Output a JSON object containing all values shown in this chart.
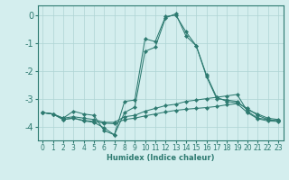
{
  "background_color": "#d4eeee",
  "grid_color": "#aed4d4",
  "line_color": "#2d7a70",
  "xlabel": "Humidex (Indice chaleur)",
  "ylim": [
    -4.5,
    0.35
  ],
  "xlim": [
    -0.5,
    23.5
  ],
  "yticks": [
    0,
    -1,
    -2,
    -3,
    -4
  ],
  "xticks": [
    0,
    1,
    2,
    3,
    4,
    5,
    6,
    7,
    8,
    9,
    10,
    11,
    12,
    13,
    14,
    15,
    16,
    17,
    18,
    19,
    20,
    21,
    22,
    23
  ],
  "curves": [
    {
      "x": [
        0,
        1,
        2,
        3,
        4,
        5,
        6,
        7,
        8,
        9,
        10,
        11,
        12,
        13,
        14,
        15,
        16,
        17,
        18,
        19,
        20,
        21,
        22,
        23
      ],
      "y": [
        -3.5,
        -3.55,
        -3.7,
        -3.45,
        -3.55,
        -3.6,
        -4.15,
        -4.3,
        -3.1,
        -3.05,
        -0.85,
        -0.95,
        -0.05,
        0.0,
        -0.6,
        -1.1,
        -2.2,
        -3.0,
        -3.05,
        -3.1,
        -3.4,
        -3.55,
        -3.7,
        -3.75
      ]
    },
    {
      "x": [
        0,
        1,
        2,
        3,
        4,
        5,
        6,
        7,
        8,
        9,
        10,
        11,
        12,
        13,
        14,
        15,
        16,
        17,
        18,
        19,
        20,
        21,
        22,
        23
      ],
      "y": [
        -3.5,
        -3.55,
        -3.75,
        -3.7,
        -3.8,
        -3.85,
        -4.05,
        -4.3,
        -3.5,
        -3.3,
        -1.3,
        -1.15,
        -0.1,
        0.05,
        -0.75,
        -1.1,
        -2.15,
        -2.95,
        -3.1,
        -3.15,
        -3.35,
        -3.6,
        -3.75,
        -3.8
      ]
    },
    {
      "x": [
        0,
        1,
        2,
        3,
        4,
        5,
        6,
        7,
        8,
        9,
        10,
        11,
        12,
        13,
        14,
        15,
        16,
        17,
        18,
        19,
        20,
        21,
        22,
        23
      ],
      "y": [
        -3.5,
        -3.55,
        -3.7,
        -3.65,
        -3.7,
        -3.75,
        -3.85,
        -3.85,
        -3.65,
        -3.6,
        -3.45,
        -3.35,
        -3.25,
        -3.2,
        -3.1,
        -3.05,
        -3.0,
        -2.95,
        -2.9,
        -2.85,
        -3.45,
        -3.7,
        -3.75,
        -3.8
      ]
    },
    {
      "x": [
        0,
        1,
        2,
        3,
        4,
        5,
        6,
        7,
        8,
        9,
        10,
        11,
        12,
        13,
        14,
        15,
        16,
        17,
        18,
        19,
        20,
        21,
        22,
        23
      ],
      "y": [
        -3.5,
        -3.55,
        -3.75,
        -3.7,
        -3.78,
        -3.82,
        -3.88,
        -3.9,
        -3.75,
        -3.7,
        -3.62,
        -3.55,
        -3.48,
        -3.42,
        -3.38,
        -3.35,
        -3.32,
        -3.28,
        -3.22,
        -3.18,
        -3.5,
        -3.72,
        -3.8,
        -3.82
      ]
    }
  ]
}
